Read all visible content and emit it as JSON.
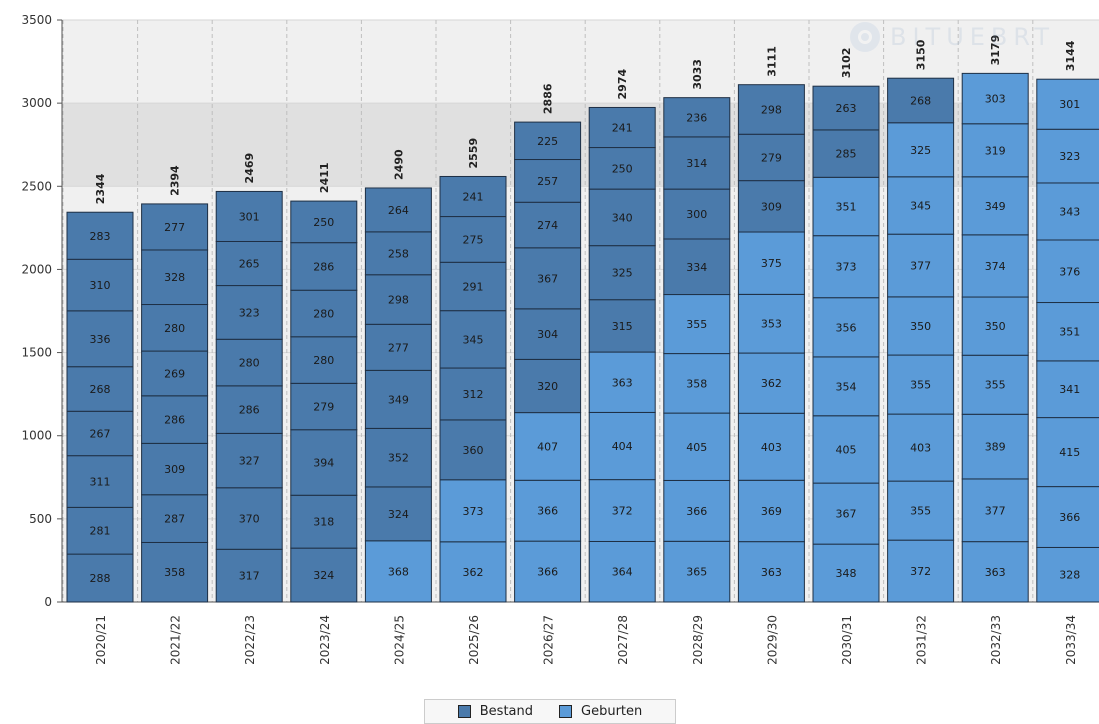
{
  "watermark": {
    "text": "BITUEBRT",
    "icon": "logo-ring-icon"
  },
  "colors": {
    "bestand": "#4a7aab",
    "geburten": "#5b9bd8",
    "band": "#e0e0e0",
    "plotBg": "#f0f0f0"
  },
  "legend": {
    "bestand": "Bestand",
    "geburten": "Geburten"
  },
  "chart_data": {
    "type": "bar",
    "stacked": true,
    "title": "",
    "xlabel": "",
    "ylabel": "",
    "ylim": [
      0,
      3500
    ],
    "yticks": [
      0,
      500,
      1000,
      1500,
      2000,
      2500,
      3000,
      3500
    ],
    "grid": true,
    "legend_position": "bottom",
    "categories": [
      "2020/21",
      "2021/22",
      "2022/23",
      "2023/24",
      "2024/25",
      "2025/26",
      "2026/27",
      "2027/28",
      "2028/29",
      "2029/30",
      "2030/31",
      "2031/32",
      "2032/33",
      "2033/34"
    ],
    "totals": [
      2344,
      2394,
      2469,
      2411,
      2490,
      2559,
      2886,
      2974,
      3033,
      3111,
      3102,
      3150,
      3179,
      3144
    ],
    "segments": [
      [
        {
          "v": 288,
          "s": "Bestand"
        },
        {
          "v": 281,
          "s": "Bestand"
        },
        {
          "v": 311,
          "s": "Bestand"
        },
        {
          "v": 267,
          "s": "Bestand"
        },
        {
          "v": 268,
          "s": "Bestand"
        },
        {
          "v": 336,
          "s": "Bestand"
        },
        {
          "v": 310,
          "s": "Bestand"
        },
        {
          "v": 283,
          "s": "Bestand"
        }
      ],
      [
        {
          "v": 358,
          "s": "Bestand"
        },
        {
          "v": 287,
          "s": "Bestand"
        },
        {
          "v": 309,
          "s": "Bestand"
        },
        {
          "v": 286,
          "s": "Bestand"
        },
        {
          "v": 269,
          "s": "Bestand"
        },
        {
          "v": 280,
          "s": "Bestand"
        },
        {
          "v": 328,
          "s": "Bestand"
        },
        {
          "v": 277,
          "s": "Bestand"
        }
      ],
      [
        {
          "v": 317,
          "s": "Bestand"
        },
        {
          "v": 370,
          "s": "Bestand"
        },
        {
          "v": 327,
          "s": "Bestand"
        },
        {
          "v": 286,
          "s": "Bestand"
        },
        {
          "v": 280,
          "s": "Bestand"
        },
        {
          "v": 323,
          "s": "Bestand"
        },
        {
          "v": 265,
          "s": "Bestand"
        },
        {
          "v": 301,
          "s": "Bestand"
        }
      ],
      [
        {
          "v": 324,
          "s": "Bestand"
        },
        {
          "v": 318,
          "s": "Bestand"
        },
        {
          "v": 394,
          "s": "Bestand"
        },
        {
          "v": 279,
          "s": "Bestand"
        },
        {
          "v": 280,
          "s": "Bestand"
        },
        {
          "v": 280,
          "s": "Bestand"
        },
        {
          "v": 286,
          "s": "Bestand"
        },
        {
          "v": 250,
          "s": "Bestand"
        }
      ],
      [
        {
          "v": 368,
          "s": "Geburten"
        },
        {
          "v": 324,
          "s": "Bestand"
        },
        {
          "v": 352,
          "s": "Bestand"
        },
        {
          "v": 349,
          "s": "Bestand"
        },
        {
          "v": 277,
          "s": "Bestand"
        },
        {
          "v": 298,
          "s": "Bestand"
        },
        {
          "v": 258,
          "s": "Bestand"
        },
        {
          "v": 264,
          "s": "Bestand"
        }
      ],
      [
        {
          "v": 362,
          "s": "Geburten"
        },
        {
          "v": 373,
          "s": "Geburten"
        },
        {
          "v": 360,
          "s": "Bestand"
        },
        {
          "v": 312,
          "s": "Bestand"
        },
        {
          "v": 345,
          "s": "Bestand"
        },
        {
          "v": 291,
          "s": "Bestand"
        },
        {
          "v": 275,
          "s": "Bestand"
        },
        {
          "v": 241,
          "s": "Bestand"
        }
      ],
      [
        {
          "v": 366,
          "s": "Geburten"
        },
        {
          "v": 366,
          "s": "Geburten"
        },
        {
          "v": 407,
          "s": "Geburten"
        },
        {
          "v": 320,
          "s": "Bestand"
        },
        {
          "v": 304,
          "s": "Bestand"
        },
        {
          "v": 367,
          "s": "Bestand"
        },
        {
          "v": 274,
          "s": "Bestand"
        },
        {
          "v": 257,
          "s": "Bestand"
        },
        {
          "v": 225,
          "s": "Bestand"
        }
      ],
      [
        {
          "v": 364,
          "s": "Geburten"
        },
        {
          "v": 372,
          "s": "Geburten"
        },
        {
          "v": 404,
          "s": "Geburten"
        },
        {
          "v": 363,
          "s": "Geburten"
        },
        {
          "v": 315,
          "s": "Bestand"
        },
        {
          "v": 325,
          "s": "Bestand"
        },
        {
          "v": 340,
          "s": "Bestand"
        },
        {
          "v": 250,
          "s": "Bestand"
        },
        {
          "v": 241,
          "s": "Bestand"
        }
      ],
      [
        {
          "v": 365,
          "s": "Geburten"
        },
        {
          "v": 366,
          "s": "Geburten"
        },
        {
          "v": 405,
          "s": "Geburten"
        },
        {
          "v": 358,
          "s": "Geburten"
        },
        {
          "v": 355,
          "s": "Geburten"
        },
        {
          "v": 334,
          "s": "Bestand"
        },
        {
          "v": 300,
          "s": "Bestand"
        },
        {
          "v": 314,
          "s": "Bestand"
        },
        {
          "v": 236,
          "s": "Bestand"
        }
      ],
      [
        {
          "v": 363,
          "s": "Geburten"
        },
        {
          "v": 369,
          "s": "Geburten"
        },
        {
          "v": 403,
          "s": "Geburten"
        },
        {
          "v": 362,
          "s": "Geburten"
        },
        {
          "v": 353,
          "s": "Geburten"
        },
        {
          "v": 375,
          "s": "Geburten"
        },
        {
          "v": 309,
          "s": "Bestand"
        },
        {
          "v": 279,
          "s": "Bestand"
        },
        {
          "v": 298,
          "s": "Bestand"
        }
      ],
      [
        {
          "v": 348,
          "s": "Geburten"
        },
        {
          "v": 367,
          "s": "Geburten"
        },
        {
          "v": 405,
          "s": "Geburten"
        },
        {
          "v": 354,
          "s": "Geburten"
        },
        {
          "v": 356,
          "s": "Geburten"
        },
        {
          "v": 373,
          "s": "Geburten"
        },
        {
          "v": 351,
          "s": "Geburten"
        },
        {
          "v": 285,
          "s": "Bestand"
        },
        {
          "v": 263,
          "s": "Bestand"
        }
      ],
      [
        {
          "v": 372,
          "s": "Geburten"
        },
        {
          "v": 355,
          "s": "Geburten"
        },
        {
          "v": 403,
          "s": "Geburten"
        },
        {
          "v": 355,
          "s": "Geburten"
        },
        {
          "v": 350,
          "s": "Geburten"
        },
        {
          "v": 377,
          "s": "Geburten"
        },
        {
          "v": 345,
          "s": "Geburten"
        },
        {
          "v": 325,
          "s": "Geburten"
        },
        {
          "v": 268,
          "s": "Bestand"
        }
      ],
      [
        {
          "v": 363,
          "s": "Geburten"
        },
        {
          "v": 377,
          "s": "Geburten"
        },
        {
          "v": 389,
          "s": "Geburten"
        },
        {
          "v": 355,
          "s": "Geburten"
        },
        {
          "v": 350,
          "s": "Geburten"
        },
        {
          "v": 374,
          "s": "Geburten"
        },
        {
          "v": 349,
          "s": "Geburten"
        },
        {
          "v": 319,
          "s": "Geburten"
        },
        {
          "v": 303,
          "s": "Geburten"
        }
      ],
      [
        {
          "v": 328,
          "s": "Geburten"
        },
        {
          "v": 366,
          "s": "Geburten"
        },
        {
          "v": 415,
          "s": "Geburten"
        },
        {
          "v": 341,
          "s": "Geburten"
        },
        {
          "v": 351,
          "s": "Geburten"
        },
        {
          "v": 376,
          "s": "Geburten"
        },
        {
          "v": 343,
          "s": "Geburten"
        },
        {
          "v": 323,
          "s": "Geburten"
        },
        {
          "v": 301,
          "s": "Geburten"
        }
      ]
    ]
  }
}
